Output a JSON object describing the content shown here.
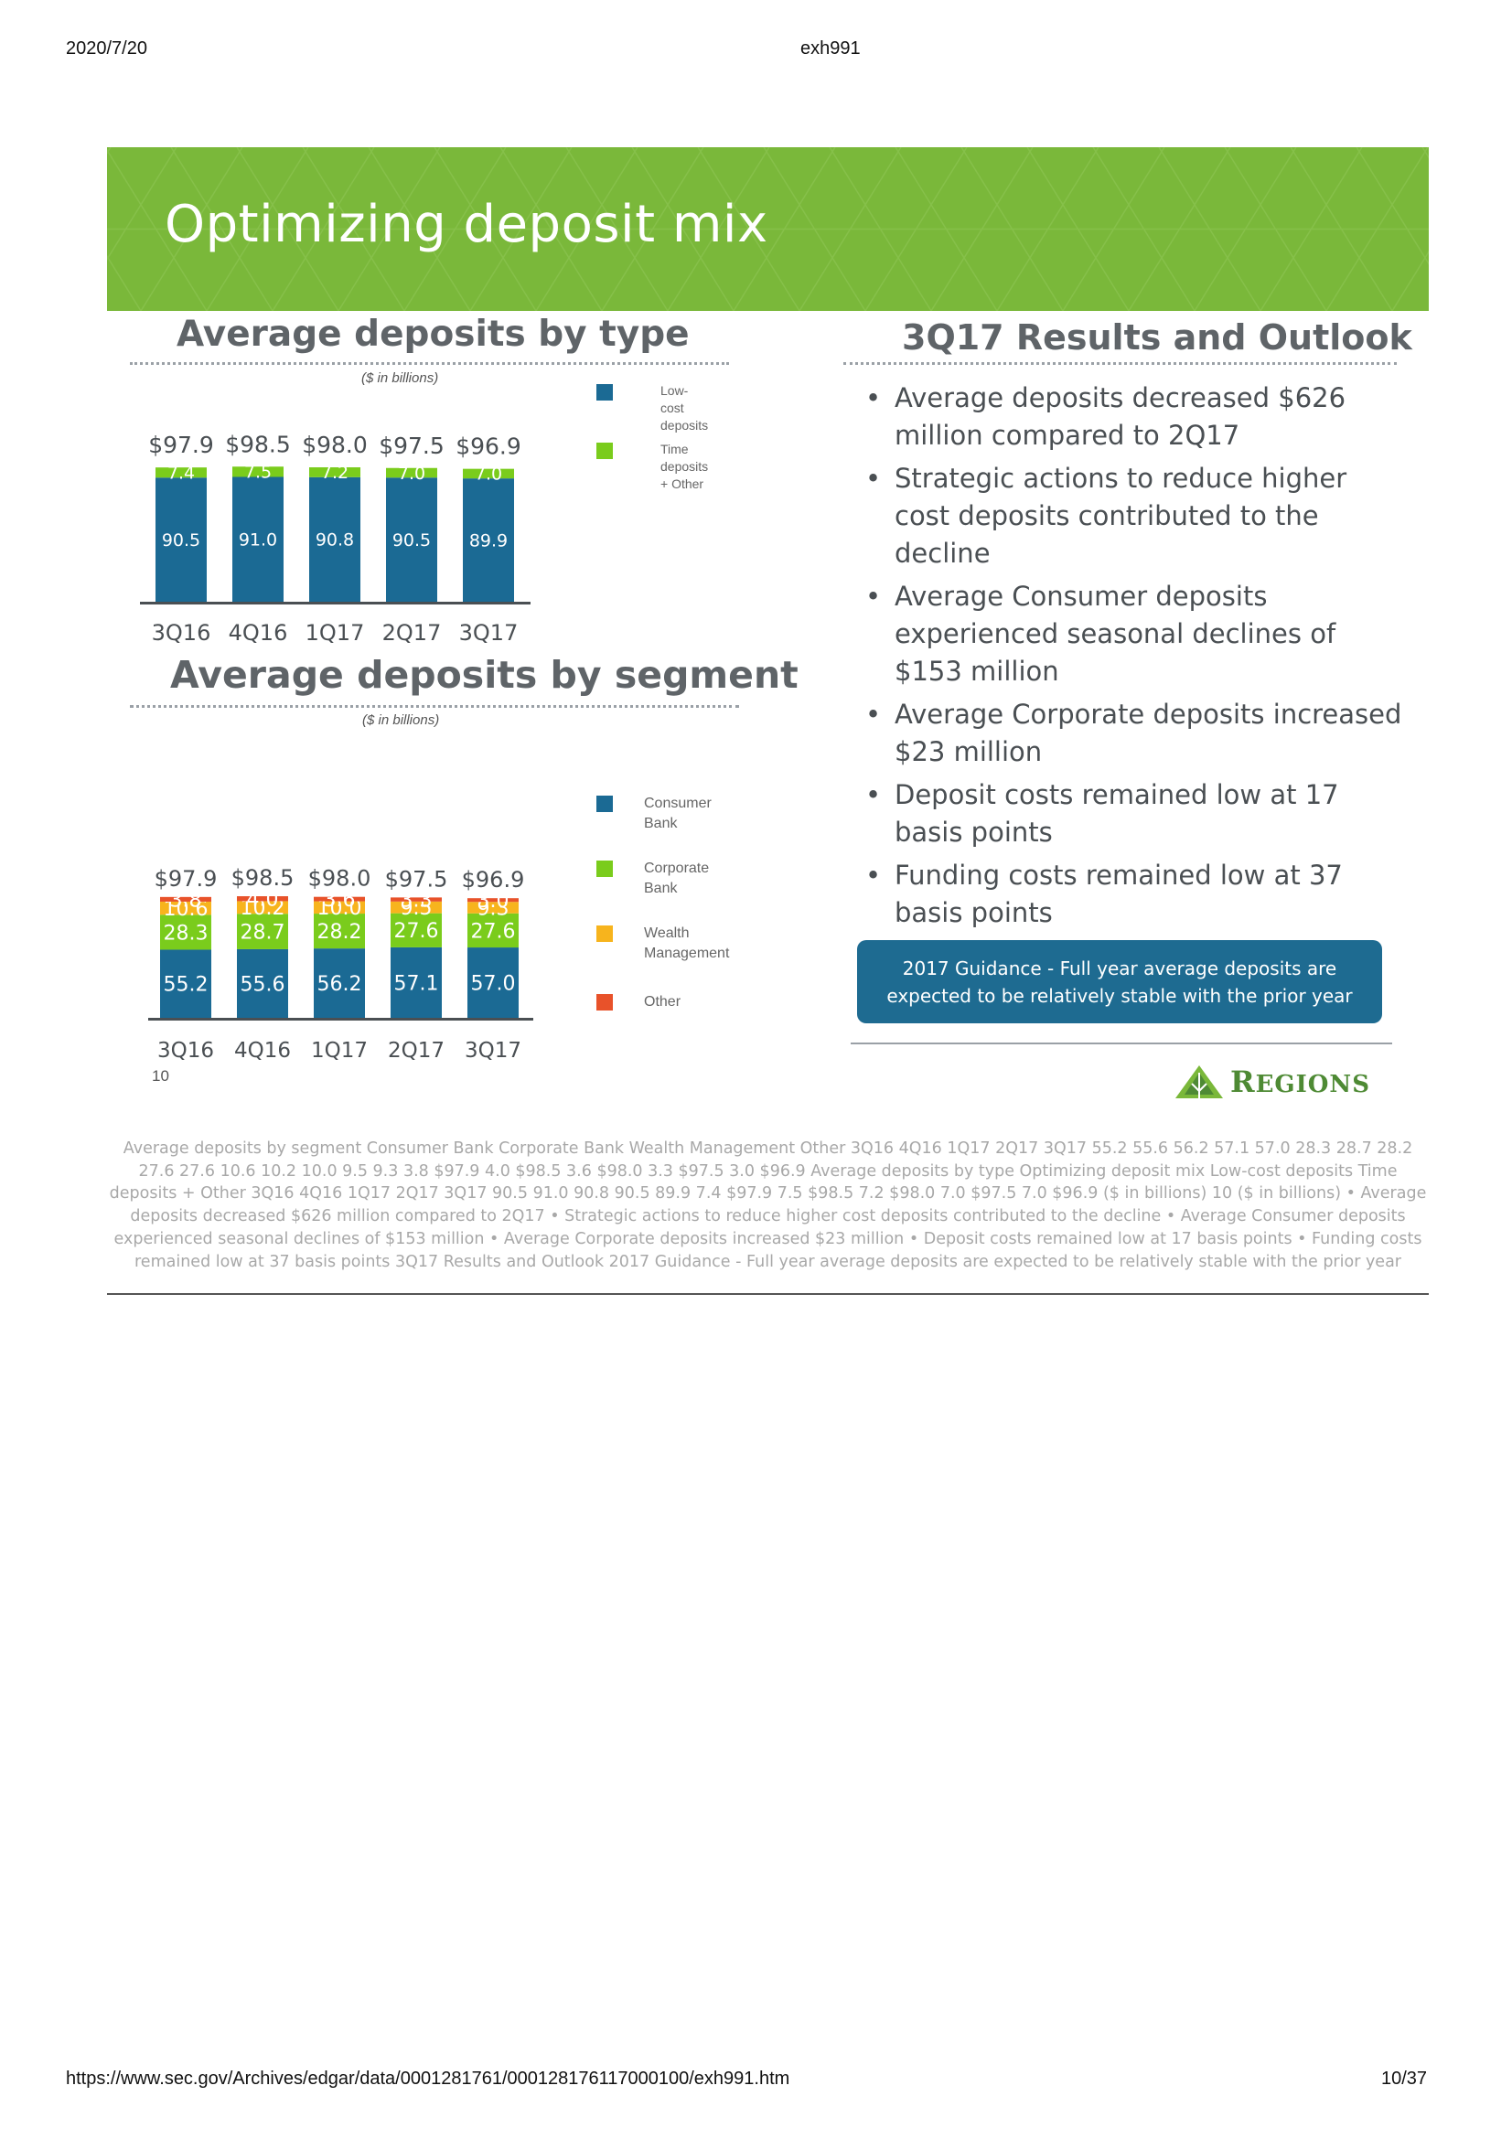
{
  "browser": {
    "date": "2020/7/20",
    "doc_title": "exh991",
    "url": "https://www.sec.gov/Archives/edgar/data/0001281761/000128176117000100/exh991.htm",
    "page_count": "10/37"
  },
  "slide": {
    "title": "Optimizing deposit mix",
    "banner_color": "#7ab83a",
    "page_number": "10",
    "logo_text": "Regions"
  },
  "type_chart": {
    "heading": "Average deposits by type",
    "units": "($ in billions)",
    "legend": [
      {
        "label": "Low-cost\ndeposits",
        "color": "#1b6a94"
      },
      {
        "label": "Time deposits\n+ Other",
        "color": "#7acc1c"
      }
    ]
  },
  "segment_chart": {
    "heading": "Average deposits by segment",
    "units": "($ in billions)",
    "legend": [
      {
        "label": "Consumer\nBank",
        "color": "#1b6a94"
      },
      {
        "label": "Corporate\nBank",
        "color": "#7acc1c"
      },
      {
        "label": "Wealth\nManagement",
        "color": "#f7b41d"
      },
      {
        "label": "Other",
        "color": "#e8522a"
      }
    ]
  },
  "chart_data": [
    {
      "type": "bar",
      "stacked": true,
      "title": "Average deposits by type",
      "subtitle": "($ in billions)",
      "categories": [
        "3Q16",
        "4Q16",
        "1Q17",
        "2Q17",
        "3Q17"
      ],
      "totals": [
        "$97.9",
        "$98.5",
        "$98.0",
        "$97.5",
        "$96.9"
      ],
      "series": [
        {
          "name": "Low-cost deposits",
          "color": "#1b6a94",
          "values": [
            90.5,
            91.0,
            90.8,
            90.5,
            89.9
          ],
          "labels": [
            "90.5",
            "91.0",
            "90.8",
            "90.5",
            "89.9"
          ]
        },
        {
          "name": "Time deposits + Other",
          "color": "#7acc1c",
          "values": [
            7.4,
            7.5,
            7.2,
            7.0,
            7.0
          ],
          "labels": [
            "7.4",
            "7.5",
            "7.2",
            "7.0",
            "7.0"
          ]
        }
      ],
      "legend_position": "right"
    },
    {
      "type": "bar",
      "stacked": true,
      "title": "Average deposits by segment",
      "subtitle": "($ in billions)",
      "categories": [
        "3Q16",
        "4Q16",
        "1Q17",
        "2Q17",
        "3Q17"
      ],
      "totals": [
        "$97.9",
        "$98.5",
        "$98.0",
        "$97.5",
        "$96.9"
      ],
      "series": [
        {
          "name": "Consumer Bank",
          "color": "#1b6a94",
          "values": [
            55.2,
            55.6,
            56.2,
            57.1,
            57.0
          ],
          "labels": [
            "55.2",
            "55.6",
            "56.2",
            "57.1",
            "57.0"
          ]
        },
        {
          "name": "Corporate Bank",
          "color": "#7acc1c",
          "values": [
            28.3,
            28.7,
            28.2,
            27.6,
            27.6
          ],
          "labels": [
            "28.3",
            "28.7",
            "28.2",
            "27.6",
            "27.6"
          ]
        },
        {
          "name": "Wealth Management",
          "color": "#f7b41d",
          "values": [
            10.6,
            10.2,
            10.0,
            9.5,
            9.3
          ],
          "labels": [
            "10.6",
            "10.2",
            "10.0",
            "9.5",
            "9.3"
          ]
        },
        {
          "name": "Other",
          "color": "#e8522a",
          "values": [
            3.8,
            4.0,
            3.6,
            3.3,
            3.0
          ],
          "labels": [
            "3.8",
            "4.0",
            "3.6",
            "3.3",
            "3.0"
          ]
        }
      ],
      "legend_position": "right"
    }
  ],
  "results": {
    "heading": "3Q17 Results and Outlook",
    "bullets": [
      "Average deposits decreased  $626 million compared to 2Q17",
      "Strategic actions to reduce higher cost deposits contributed to the decline",
      "Average Consumer deposits experienced seasonal declines of $153 million",
      "Average Corporate deposits increased $23 million",
      "Deposit costs remained low at 17 basis points",
      "Funding costs remained low at 37 basis points"
    ],
    "guidance": "2017 Guidance - Full year average deposits are expected to be relatively stable with the prior year"
  },
  "alt_text": "Average deposits by segment Consumer Bank Corporate Bank Wealth Management Other 3Q16 4Q16 1Q17 2Q17 3Q17 55.2 55.6 56.2 57.1 57.0 28.3 28.7 28.2 27.6 27.6 10.6 10.2 10.0 9.5 9.3 3.8 $97.9 4.0 $98.5 3.6 $98.0 3.3 $97.5 3.0 $96.9 Average deposits by type Optimizing deposit mix Low-cost deposits Time deposits + Other 3Q16 4Q16 1Q17 2Q17 3Q17 90.5 91.0 90.8 90.5 89.9 7.4 $97.9 7.5 $98.5 7.2 $98.0 7.0 $97.5 7.0 $96.9 ($ in billions) 10 ($ in billions) • Average deposits decreased $626 million compared to 2Q17 • Strategic actions to reduce higher cost deposits contributed to the decline • Average Consumer deposits experienced seasonal declines of $153 million  • Average Corporate deposits increased $23 million • Deposit costs remained low at 17 basis points • Funding costs remained low at 37 basis points 3Q17 Results and Outlook 2017 Guidance - Full year average deposits are expected to be relatively stable with the prior year"
}
